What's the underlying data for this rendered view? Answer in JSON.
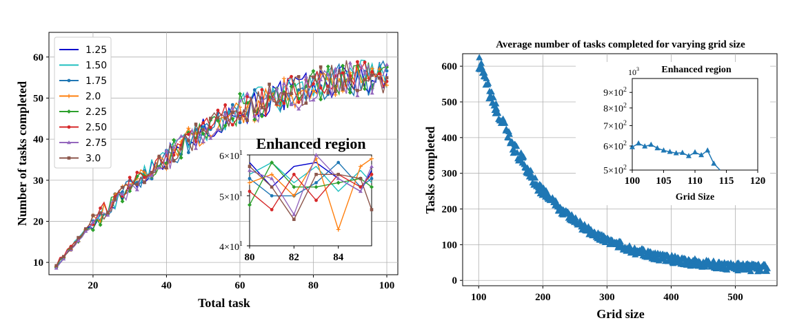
{
  "chart_data": [
    {
      "type": "line",
      "title": "",
      "xlabel": "Total task",
      "ylabel": "Number of tasks completed",
      "xlim": [
        8,
        103
      ],
      "ylim": [
        7,
        66
      ],
      "xticks": [
        "20",
        "40",
        "60",
        "80",
        "100"
      ],
      "yticks": [
        "10",
        "20",
        "30",
        "40",
        "50",
        "60"
      ],
      "grid": true,
      "legend_position": "top-left",
      "x": [
        10,
        20,
        30,
        40,
        50,
        60,
        70,
        80,
        90,
        100
      ],
      "series": [
        {
          "name": "1.25",
          "color": "#0000cc",
          "marker": "none",
          "values": [
            9.5,
            19.5,
            28.5,
            35.5,
            42,
            47,
            50,
            53,
            55,
            55
          ]
        },
        {
          "name": "1.50",
          "color": "#1fbfbf",
          "marker": "none",
          "values": [
            9.5,
            19.8,
            28.8,
            35.8,
            42.3,
            47.3,
            50.3,
            53.3,
            55.3,
            55.3
          ]
        },
        {
          "name": "1.75",
          "color": "#1f77b4",
          "marker": "circle",
          "values": [
            9.3,
            19.3,
            28.3,
            35.3,
            41.8,
            46.8,
            49.8,
            52.8,
            54.8,
            54.8
          ]
        },
        {
          "name": "2.0",
          "color": "#ff7f0e",
          "marker": "plus",
          "values": [
            9.6,
            19.6,
            28.6,
            35.6,
            42.1,
            47.1,
            50.1,
            53.1,
            55.1,
            55.1
          ]
        },
        {
          "name": "2.25",
          "color": "#2ca02c",
          "marker": "diamond",
          "values": [
            9.4,
            19.4,
            28.4,
            35.4,
            41.9,
            46.9,
            49.9,
            52.9,
            54.9,
            54.9
          ]
        },
        {
          "name": "2.50",
          "color": "#d62728",
          "marker": "circle",
          "values": [
            9.7,
            19.7,
            28.7,
            35.7,
            42.2,
            47.2,
            50.2,
            53.2,
            55.2,
            55.2
          ]
        },
        {
          "name": "2.75",
          "color": "#9467bd",
          "marker": "triangle",
          "values": [
            9.2,
            19.2,
            28.2,
            35.2,
            41.7,
            46.7,
            49.7,
            52.7,
            54.7,
            54.7
          ]
        },
        {
          "name": "3.0",
          "color": "#8c564b",
          "marker": "square",
          "values": [
            9.8,
            19.8,
            28.8,
            35.8,
            42.3,
            47.3,
            50.3,
            53.3,
            55.3,
            55.3
          ]
        }
      ],
      "inset": {
        "title": "Enhanced region",
        "xlim": [
          80,
          85.5
        ],
        "ylim": [
          40,
          60
        ],
        "yscale": "log",
        "xticks": [
          "80",
          "82",
          "84"
        ],
        "yticks": [
          {
            "base": "4×10",
            "exp": "1"
          },
          {
            "base": "5×10",
            "exp": "1"
          },
          {
            "base": "6×10",
            "exp": "1"
          }
        ],
        "x": [
          80,
          81,
          82,
          83,
          84,
          85,
          85.5
        ],
        "series_values": [
          [
            58,
            52,
            57,
            58,
            54,
            51,
            56
          ],
          [
            55,
            58,
            53,
            57,
            51,
            56,
            53
          ],
          [
            54,
            50,
            50,
            53,
            58,
            52,
            54
          ],
          [
            53,
            55,
            50,
            59,
            43,
            57,
            59
          ],
          [
            48,
            58,
            52,
            52,
            53,
            54,
            52
          ],
          [
            51,
            47,
            55,
            49,
            55,
            52,
            55
          ],
          [
            56,
            54,
            46,
            60,
            54,
            51,
            57
          ],
          [
            57,
            52,
            45,
            55,
            55,
            54,
            47
          ]
        ]
      }
    },
    {
      "type": "scatter",
      "title": "Average number of tasks completed for varying grid size",
      "xlabel": "Grid size",
      "ylabel": "Tasks completed",
      "xlim": [
        75,
        565
      ],
      "ylim": [
        -15,
        635
      ],
      "xticks": [
        "100",
        "200",
        "300",
        "400",
        "500"
      ],
      "yticks": [
        "0",
        "100",
        "200",
        "300",
        "400",
        "500",
        "600"
      ],
      "grid": true,
      "series": [
        {
          "name": "",
          "color": "#1f77b4",
          "marker": "triangle",
          "x_range": [
            100,
            550
          ],
          "a": 585,
          "k": 0.0095,
          "c": 25,
          "noise": 14
        }
      ],
      "inset": {
        "title": "Enhanced region",
        "xlabel": "Grid Size",
        "xlim": [
          100,
          120
        ],
        "ylim": [
          500,
          1000
        ],
        "yscale": "log",
        "xticks": [
          "100",
          "105",
          "110",
          "115",
          "120"
        ],
        "yticks": [
          {
            "base": "5×10",
            "exp": "2",
            "value": 500
          },
          {
            "base": "6×10",
            "exp": "2",
            "value": 600
          },
          {
            "base": "7×10",
            "exp": "2",
            "value": 700
          },
          {
            "base": "8×10",
            "exp": "2",
            "value": 800
          },
          {
            "base": "9×10",
            "exp": "2",
            "value": 900
          },
          {
            "base": "10",
            "exp": "3",
            "value": 1000
          }
        ],
        "x": [
          100,
          101,
          102,
          103,
          104,
          105,
          106,
          107,
          108,
          109,
          110,
          111,
          112,
          113,
          114
        ],
        "y": [
          595,
          612,
          598,
          606,
          590,
          580,
          574,
          568,
          570,
          556,
          572,
          560,
          580,
          525,
          498
        ]
      }
    }
  ]
}
